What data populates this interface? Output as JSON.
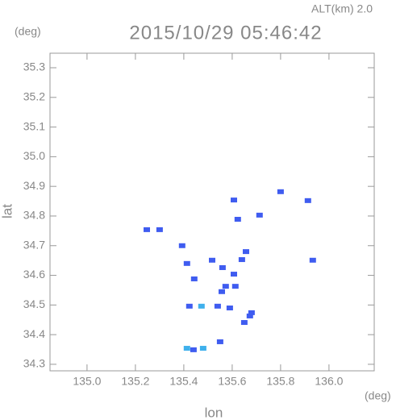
{
  "chart_data": {
    "type": "scatter",
    "annotation": "ALT(km) 2.0",
    "title": "2015/10/29 05:46:42",
    "y_unit": "(deg)",
    "x_unit": "(deg)",
    "ylabel": "lat",
    "xlabel": "lon",
    "xlim": [
      134.847,
      136.187
    ],
    "ylim": [
      34.278,
      35.349
    ],
    "xticks": [
      {
        "value": 135,
        "label": "135.0"
      },
      135.2,
      135.4,
      135.6,
      135.8,
      {
        "value": 136,
        "label": "136.0"
      }
    ],
    "yticks": [
      34.3,
      34.4,
      {
        "value": 34.5,
        "label": "34.5"
      },
      34.6,
      34.7,
      34.8,
      34.9,
      {
        "value": 35,
        "label": "35.0"
      },
      35.1,
      35.2,
      35.3
    ],
    "series": [
      {
        "color": "#3f5cf0",
        "x": [
          135.247,
          135.3,
          135.607,
          135.623,
          135.713,
          135.8,
          135.913,
          135.933,
          135.393,
          135.413,
          135.443,
          135.517,
          135.56,
          135.64,
          135.657,
          135.607,
          135.573,
          135.557,
          135.613,
          135.54,
          135.59,
          135.673,
          135.65,
          135.68,
          135.55,
          135.44,
          135.423
        ],
        "y": [
          34.754,
          34.754,
          34.854,
          34.789,
          34.803,
          34.882,
          34.852,
          34.651,
          34.7,
          34.64,
          34.588,
          34.651,
          34.626,
          34.653,
          34.68,
          34.604,
          34.563,
          34.545,
          34.563,
          34.496,
          34.49,
          34.463,
          34.441,
          34.474,
          34.376,
          34.349,
          34.496
        ]
      },
      {
        "color": "#3fb0ec",
        "x": [
          135.413,
          135.48,
          135.473
        ],
        "y": [
          34.354,
          34.354,
          34.496
        ]
      }
    ]
  }
}
